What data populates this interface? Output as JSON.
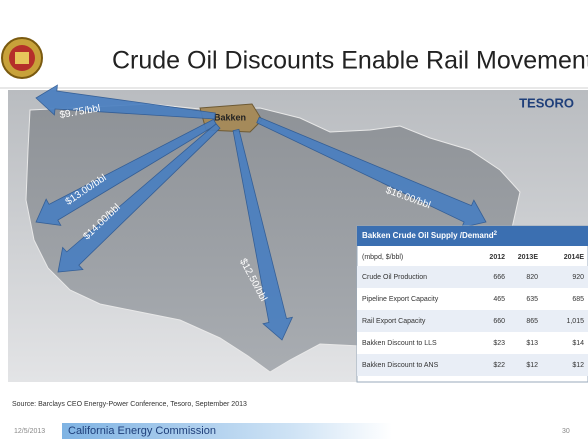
{
  "header": {
    "title": "Crude Oil Discounts Enable Rail Movements"
  },
  "map": {
    "origin": "Bakken",
    "brand": "TESORO",
    "routes": [
      "$9.75/bbl",
      "$13.00/bbl",
      "$14.00/bbl",
      "$12.50/bbl",
      "$16.00/bbl"
    ]
  },
  "table": {
    "title": "Bakken Crude Oil Supply /Demand",
    "title_note": "2",
    "columns": [
      "(mbpd, $/bbl)",
      "2012",
      "2013E",
      "2014E"
    ],
    "rows": [
      [
        "Crude Oil Production",
        "666",
        "820",
        "920"
      ],
      [
        "Pipeline Export Capacity",
        "465",
        "635",
        "685"
      ],
      [
        "Rail Export Capacity",
        "660",
        "865",
        "1,015"
      ],
      [
        "Bakken Discount to LLS",
        "$23",
        "$13",
        "$14"
      ],
      [
        "Bakken Discount to ANS",
        "$22",
        "$12",
        "$12"
      ]
    ]
  },
  "source": "Source: Barclays CEO Energy-Power Conference, Tesoro, September 2013",
  "footer": {
    "date": "12/5/2013",
    "organization": "California Energy Commission",
    "page": "30"
  }
}
